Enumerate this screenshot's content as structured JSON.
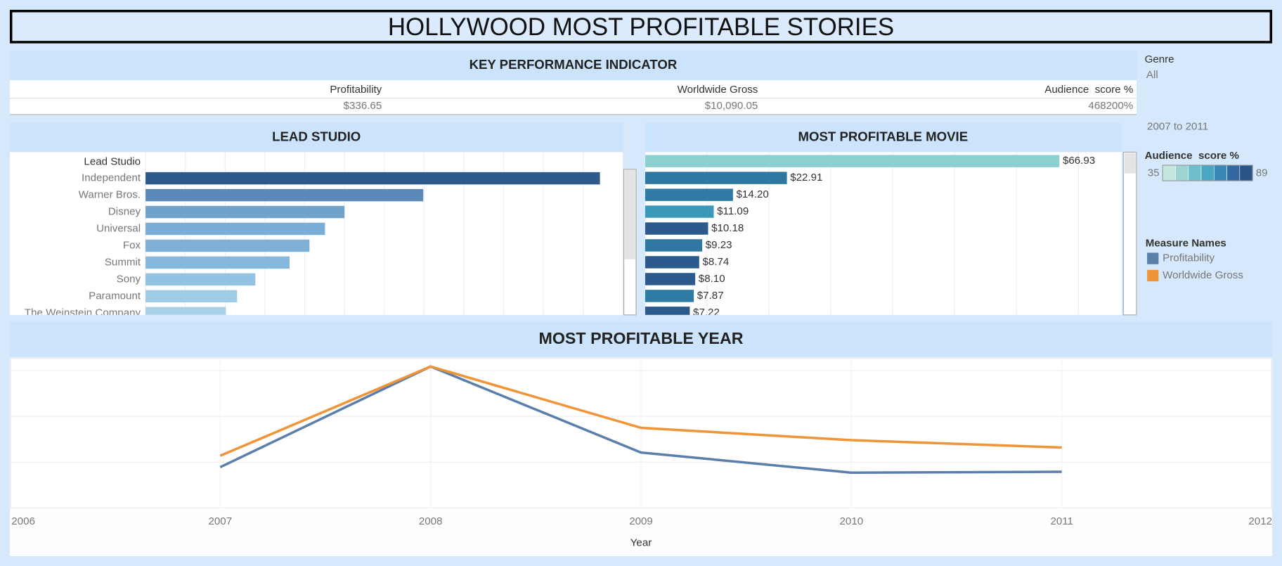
{
  "header": {
    "title": "HOLLYWOOD MOST PROFITABLE STORIES"
  },
  "kpi": {
    "title": "KEY PERFORMANCE INDICATOR",
    "columns": [
      "Profitability",
      "Worldwide Gross",
      "Audience  score %"
    ],
    "values": [
      "$336.65",
      "$10,090.05",
      "468200%"
    ]
  },
  "filters": {
    "genre_label": "Genre",
    "genre_value": "All",
    "year_range": "2007 to 2011"
  },
  "color_legend": {
    "title": "Audience  score %",
    "min": 35,
    "max": 89,
    "colors": [
      "#c6e7df",
      "#9dd3d3",
      "#6cbfcb",
      "#4aa6c3",
      "#3a88b5",
      "#3169a0",
      "#2b5586"
    ]
  },
  "measure_legend": {
    "title": "Measure Names"
  },
  "chart_data": [
    {
      "type": "bar",
      "title": "LEAD STUDIO",
      "row_header": "Lead Studio",
      "categories": [
        "Independent",
        "Warner Bros.",
        "Disney",
        "Universal",
        "Fox",
        "Summit",
        "Sony",
        "Paramount",
        "The Weinstein Company"
      ],
      "values": [
        114.2,
        69.8,
        50.0,
        45.1,
        41.2,
        36.2,
        27.6,
        23.0,
        20.2
      ],
      "colors": [
        "#2d5a8a",
        "#5b8ab8",
        "#6fa3cc",
        "#7aaed6",
        "#7fb1d8",
        "#86b8dc",
        "#92c3e2",
        "#9fcbe6",
        "#a8d0e8"
      ],
      "xlim": [
        0,
        120
      ],
      "xticks": [
        0,
        10,
        20,
        30,
        40,
        50,
        60,
        70,
        80,
        90,
        100,
        110,
        120
      ],
      "grid": true
    },
    {
      "type": "bar",
      "title": "MOST PROFITABLE MOVIE",
      "values": [
        66.93,
        22.91,
        14.2,
        11.09,
        10.18,
        9.23,
        8.74,
        8.1,
        7.87,
        7.22
      ],
      "value_labels": [
        "$66.93",
        "$22.91",
        "$14.20",
        "$11.09",
        "$10.18",
        "$9.23",
        "$8.74",
        "$8.10",
        "$7.87",
        "$7.22"
      ],
      "colors": [
        "#8ecfd0",
        "#2e77a0",
        "#2f79a3",
        "#3a98b8",
        "#2c5a8c",
        "#2f76a0",
        "#2c5a8c",
        "#2c5a8c",
        "#2d7aa3",
        "#2c5a8c"
      ],
      "xlim": [
        0,
        77
      ],
      "xticks": [
        0,
        10,
        20,
        30,
        40,
        50,
        60,
        70
      ],
      "grid": true
    },
    {
      "type": "line",
      "title": "MOST PROFITABLE YEAR",
      "x_label": "Year",
      "x": [
        2007,
        2008,
        2009,
        2010,
        2011
      ],
      "series": [
        {
          "name": "Profitability",
          "color": "#5a7fab",
          "values": [
            0.89,
            3.09,
            1.21,
            0.77,
            0.79
          ]
        },
        {
          "name": "Worldwide Gross",
          "color": "#f09438",
          "values": [
            1.14,
            3.09,
            1.75,
            1.48,
            1.32
          ]
        }
      ],
      "xlim": [
        2006,
        2012
      ],
      "xticks": [
        2006,
        2007,
        2008,
        2009,
        2010,
        2011,
        2012
      ],
      "ylim": [
        0,
        3.27
      ],
      "yticks": [
        0,
        1,
        2,
        3
      ],
      "grid": true
    }
  ]
}
